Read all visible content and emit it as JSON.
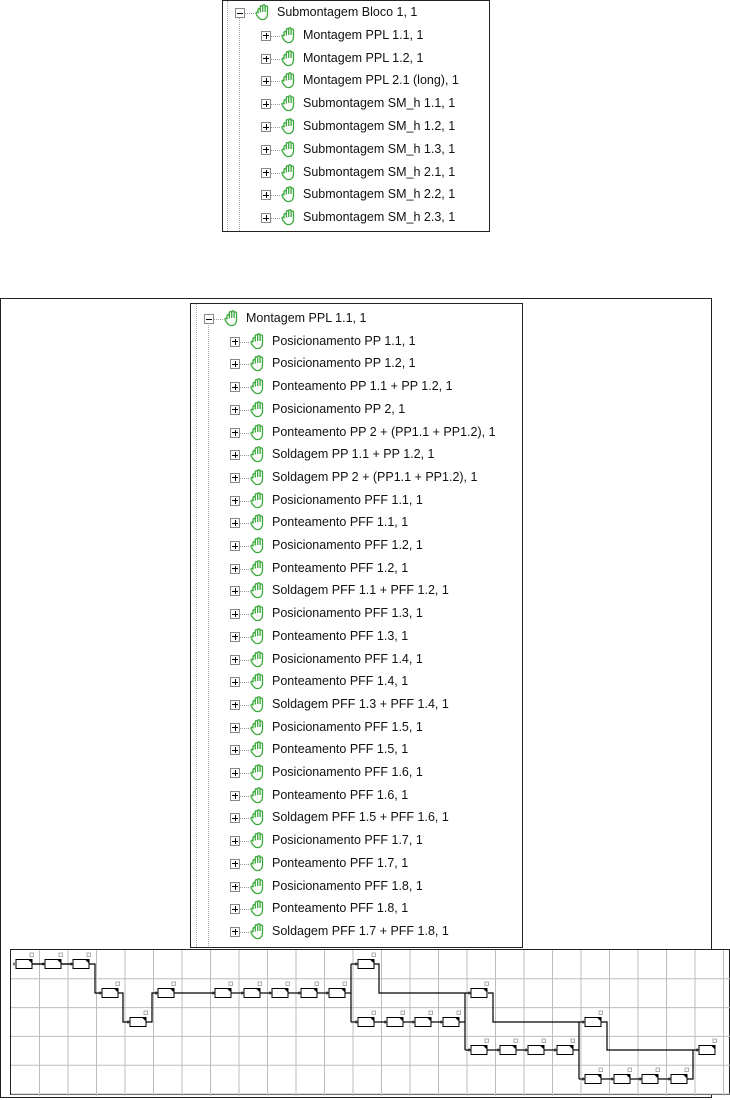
{
  "tree_top": {
    "root": "Submontagem Bloco 1, 1",
    "items": [
      "Montagem PPL 1.1, 1",
      "Montagem PPL 1.2, 1",
      "Montagem PPL 2.1 (long), 1",
      "Submontagem SM_h 1.1, 1",
      "Submontagem SM_h 1.2, 1",
      "Submontagem SM_h 1.3, 1",
      "Submontagem SM_h 2.1, 1",
      "Submontagem SM_h 2.2, 1",
      "Submontagem SM_h 2.3, 1"
    ]
  },
  "tree_main": {
    "root": "Montagem PPL 1.1, 1",
    "items": [
      "Posicionamento PP 1.1, 1",
      "Posicionamento PP 1.2, 1",
      "Ponteamento PP 1.1 + PP 1.2, 1",
      "Posicionamento PP 2, 1",
      "Ponteamento PP 2 + (PP1.1 + PP1.2), 1",
      "Soldagem PP 1.1 + PP 1.2, 1",
      "Soldagem PP 2 + (PP1.1 + PP1.2), 1",
      "Posicionamento PFF 1.1, 1",
      "Ponteamento PFF 1.1, 1",
      "Posicionamento PFF 1.2, 1",
      "Ponteamento PFF 1.2, 1",
      "Soldagem PFF 1.1 + PFF 1.2, 1",
      "Posicionamento PFF 1.3, 1",
      "Ponteamento PFF 1.3, 1",
      "Posicionamento PFF 1.4, 1",
      "Ponteamento PFF 1.4, 1",
      "Soldagem PFF 1.3 + PFF 1.4, 1",
      "Posicionamento PFF 1.5, 1",
      "Ponteamento PFF 1.5, 1",
      "Posicionamento PFF 1.6, 1",
      "Ponteamento PFF 1.6, 1",
      "Soldagem PFF 1.5 + PFF 1.6, 1",
      "Posicionamento PFF 1.7, 1",
      "Ponteamento PFF 1.7, 1",
      "Posicionamento PFF 1.8, 1",
      "Ponteamento PFF 1.8, 1",
      "Soldagem PFF 1.7 + PFF 1.8, 1"
    ]
  },
  "icons": {
    "node": "hand-icon",
    "expand": "plus-box-icon",
    "collapse": "minus-box-icon"
  },
  "colors": {
    "hand": "#3aa83a",
    "grid": "#bdbdbd",
    "line": "#000000"
  }
}
